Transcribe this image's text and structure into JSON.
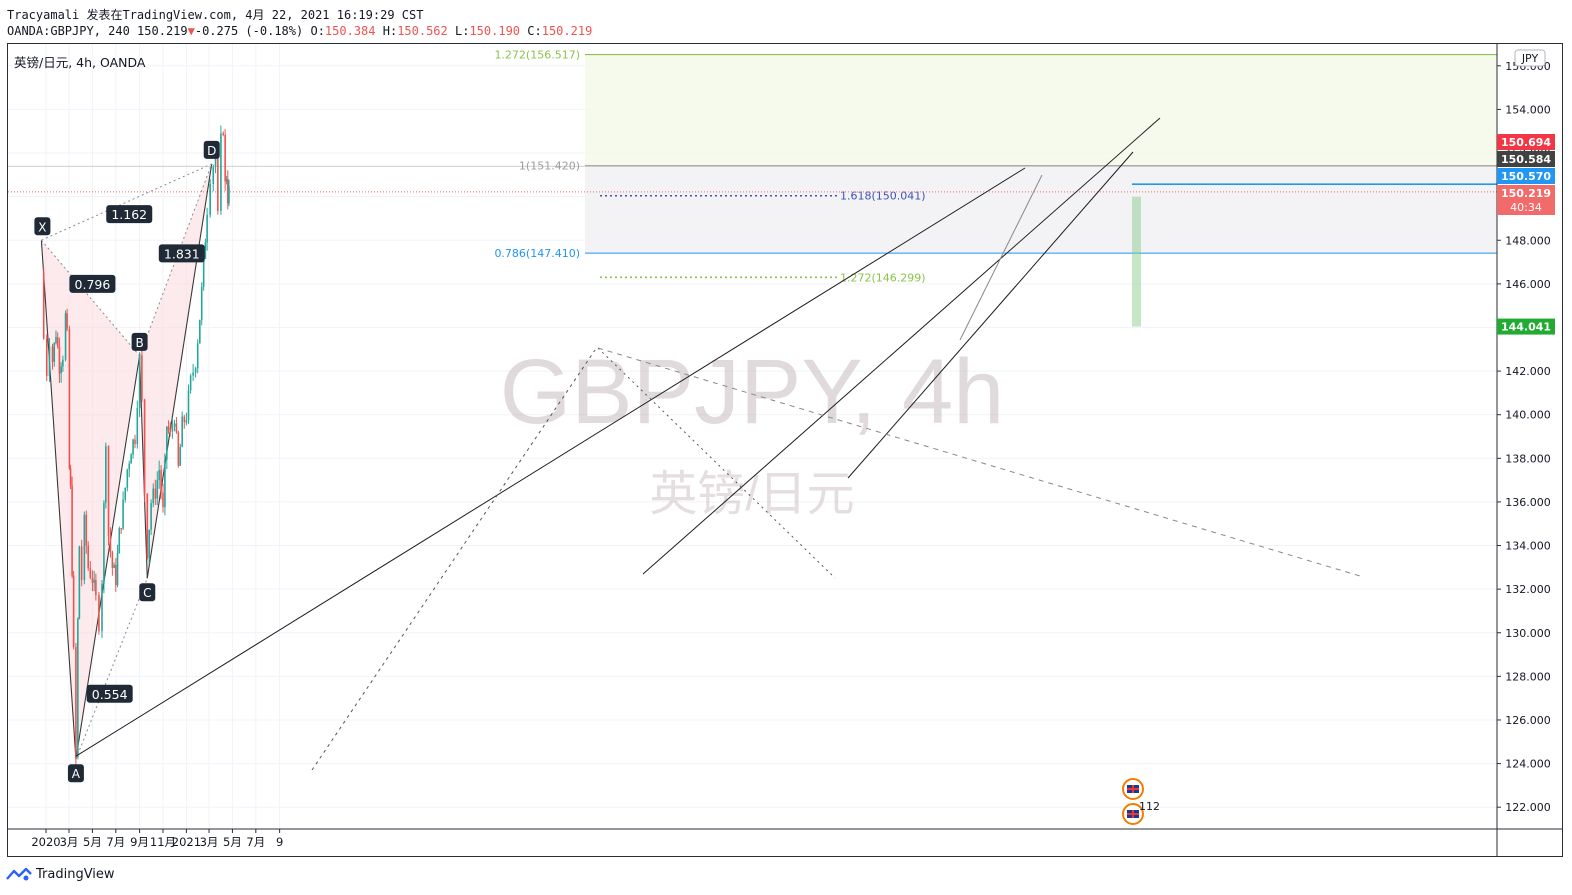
{
  "header": {
    "line1": "Tracyamali 发表在TradingView.com, 4月 22, 2021 16:19:29 CST",
    "symbol_line_prefix": "OANDA:GBPJPY, 240 150.219",
    "change_arrow": "▼",
    "change": "-0.275 (-0.18%)",
    "o_label": "O:",
    "o": "150.384",
    "h_label": "H:",
    "h": "150.562",
    "l_label": "L:",
    "l": "150.190",
    "c_label": "C:",
    "c": "150.219"
  },
  "chart_title": "英镑/日元, 4h, OANDA",
  "currency_badge": "JPY",
  "watermark": {
    "symbol": "GBPJPY, 4h",
    "name": "英镑/日元"
  },
  "footer": {
    "brand": "TradingView"
  },
  "colors": {
    "up": "#26a69a",
    "down": "#ef5350",
    "pattern_fill": "#f9d9dc",
    "fib_green": "#8bc34a",
    "fib_blue": "#2196f3",
    "fib_purple": "#3f51b5",
    "price_red": "#f23645",
    "price_gray": "#424242",
    "price_blue": "#2196f3",
    "price_current": "#f26b6b",
    "price_green": "#22ab33"
  },
  "chart_data": {
    "type": "candlestick",
    "symbol": "GBPJPY",
    "interval": "4h",
    "ylim": [
      121,
      157
    ],
    "y_ticks": [
      122,
      124,
      126,
      128,
      130,
      132,
      134,
      136,
      138,
      140,
      142,
      144,
      146,
      148,
      150,
      152,
      154,
      156
    ],
    "y_tick_labels": [
      "122.000",
      "124.000",
      "126.000",
      "128.000",
      "130.000",
      "132.000",
      "134.000",
      "136.000",
      "138.000",
      "140.000",
      "142.000",
      "144.000",
      "146.000",
      "148.000",
      "150.000",
      "152.000",
      "154.000",
      "156.000"
    ],
    "x_ticks": [
      {
        "label": "2020",
        "date": "2020-01-01"
      },
      {
        "label": "3月",
        "date": "2020-03-01"
      },
      {
        "label": "5月",
        "date": "2020-05-01"
      },
      {
        "label": "7月",
        "date": "2020-07-01"
      },
      {
        "label": "9月",
        "date": "2020-09-01"
      },
      {
        "label": "11月",
        "date": "2020-11-01"
      },
      {
        "label": "2021",
        "date": "2021-01-01"
      },
      {
        "label": "3月",
        "date": "2021-03-01"
      },
      {
        "label": "5月",
        "date": "2021-05-01"
      },
      {
        "label": "7月",
        "date": "2021-07-01"
      },
      {
        "label": "9",
        "date": "2021-09-01"
      }
    ],
    "price_path": [
      [
        "2019-12-20",
        146.5
      ],
      [
        "2019-12-26",
        143.5
      ],
      [
        "2020-01-03",
        142.0
      ],
      [
        "2020-01-10",
        143.5
      ],
      [
        "2020-01-18",
        142.5
      ],
      [
        "2020-01-27",
        143.8
      ],
      [
        "2020-02-05",
        142.3
      ],
      [
        "2020-02-14",
        142.8
      ],
      [
        "2020-02-21",
        144.5
      ],
      [
        "2020-02-25",
        143.5
      ],
      [
        "2020-03-02",
        137.5
      ],
      [
        "2020-03-05",
        136.5
      ],
      [
        "2020-03-09",
        133.0
      ],
      [
        "2020-03-13",
        129.0
      ],
      [
        "2020-03-19",
        124.2
      ],
      [
        "2020-03-24",
        130.5
      ],
      [
        "2020-03-28",
        134.0
      ],
      [
        "2020-04-03",
        132.5
      ],
      [
        "2020-04-10",
        135.0
      ],
      [
        "2020-04-20",
        133.0
      ],
      [
        "2020-05-01",
        132.5
      ],
      [
        "2020-05-10",
        131.5
      ],
      [
        "2020-05-18",
        130.5
      ],
      [
        "2020-05-26",
        132.5
      ],
      [
        "2020-06-05",
        139.0
      ],
      [
        "2020-06-12",
        134.5
      ],
      [
        "2020-06-22",
        133.0
      ],
      [
        "2020-07-01",
        132.5
      ],
      [
        "2020-07-10",
        134.5
      ],
      [
        "2020-07-20",
        135.8
      ],
      [
        "2020-07-31",
        137.5
      ],
      [
        "2020-08-10",
        138.5
      ],
      [
        "2020-08-20",
        139.0
      ],
      [
        "2020-09-01",
        142.5
      ],
      [
        "2020-09-07",
        140.5
      ],
      [
        "2020-09-14",
        136.5
      ],
      [
        "2020-09-21",
        133.8
      ],
      [
        "2020-10-01",
        136.0
      ],
      [
        "2020-10-12",
        136.5
      ],
      [
        "2020-10-22",
        137.5
      ],
      [
        "2020-11-01",
        135.5
      ],
      [
        "2020-11-11",
        139.5
      ],
      [
        "2020-11-20",
        139.0
      ],
      [
        "2020-12-01",
        140.0
      ],
      [
        "2020-12-11",
        137.5
      ],
      [
        "2020-12-21",
        139.5
      ],
      [
        "2021-01-01",
        140.0
      ],
      [
        "2021-01-12",
        141.5
      ],
      [
        "2021-01-25",
        142.5
      ],
      [
        "2021-02-05",
        144.5
      ],
      [
        "2021-02-15",
        146.8
      ],
      [
        "2021-02-24",
        149.5
      ],
      [
        "2021-03-04",
        151.0
      ],
      [
        "2021-03-12",
        151.5
      ],
      [
        "2021-03-18",
        152.0
      ],
      [
        "2021-03-24",
        149.0
      ],
      [
        "2021-04-01",
        152.5
      ],
      [
        "2021-04-07",
        153.2
      ],
      [
        "2021-04-12",
        150.5
      ],
      [
        "2021-04-16",
        151.0
      ],
      [
        "2021-04-19",
        150.0
      ],
      [
        "2021-04-22",
        150.2
      ]
    ],
    "harmonic_pattern": {
      "points": [
        {
          "label": "X",
          "date": "2019-12-20",
          "price": 148.0
        },
        {
          "label": "A",
          "date": "2020-03-19",
          "price": 124.2
        },
        {
          "label": "B",
          "date": "2020-09-01",
          "price": 142.7
        },
        {
          "label": "C",
          "date": "2020-09-21",
          "price": 132.5
        },
        {
          "label": "D",
          "date": "2021-03-08",
          "price": 151.5
        }
      ],
      "ratios": [
        {
          "label": "0.796",
          "date": "2020-05-01",
          "price": 146.0
        },
        {
          "label": "0.554",
          "date": "2020-06-15",
          "price": 127.2
        },
        {
          "label": "1.831",
          "date": "2020-12-20",
          "price": 147.4
        },
        {
          "label": "1.162",
          "date": "2020-08-05",
          "price": 149.2
        }
      ]
    },
    "fib_levels": [
      {
        "label": "1.272(156.517)",
        "value": 156.517,
        "color": "#8bc34a",
        "style": "solid"
      },
      {
        "label": "1(151.420)",
        "value": 151.42,
        "color": "#9e9e9e",
        "style": "solid"
      },
      {
        "label": "0.786(147.410)",
        "value": 147.41,
        "color": "#2196f3",
        "style": "solid"
      },
      {
        "label": "1.618(150.041)",
        "value": 150.041,
        "color": "#3f51b5",
        "style": "dotted"
      },
      {
        "label": "1.272(146.299)",
        "value": 146.299,
        "color": "#8bc34a",
        "style": "dotted"
      }
    ],
    "price_labels": [
      {
        "value": 150.694,
        "text": "150.694",
        "color": "#f23645"
      },
      {
        "value": 150.584,
        "text": "150.584",
        "color": "#424242"
      },
      {
        "value": 150.57,
        "text": "150.570",
        "color": "#2196f3"
      },
      {
        "value": 150.219,
        "text": "150.219",
        "color": "#f26b6b",
        "sub": "40:34"
      },
      {
        "value": 144.041,
        "text": "144.041",
        "color": "#22ab33"
      }
    ],
    "event_badge": "112"
  }
}
